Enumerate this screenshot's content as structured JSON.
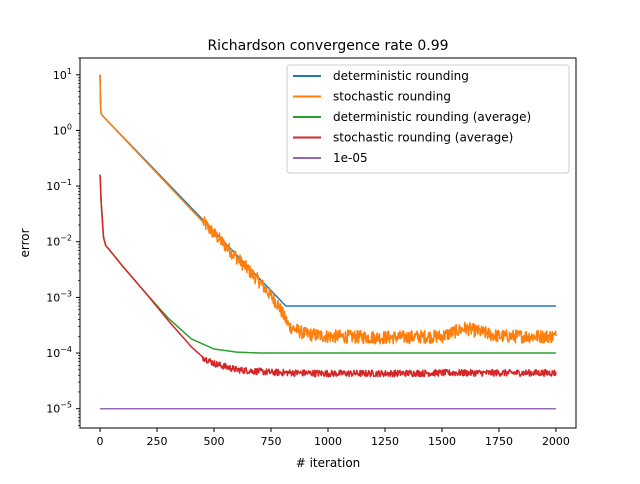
{
  "chart_data": {
    "type": "line",
    "title": "Richardson convergence rate 0.99",
    "xlabel": "# iteration",
    "ylabel": "error",
    "xlim": [
      -88,
      2088
    ],
    "ylim": [
      4.5e-06,
      20
    ],
    "yscale": "log",
    "grid": false,
    "legend_position": "top-right",
    "x_ticks": [
      0,
      250,
      500,
      750,
      1000,
      1250,
      1500,
      1750,
      2000
    ],
    "x_tick_labels": [
      "0",
      "250",
      "500",
      "750",
      "1000",
      "1250",
      "1500",
      "1750",
      "2000"
    ],
    "y_ticks": [
      1e-05,
      0.0001,
      0.001,
      0.01,
      0.1,
      1,
      10
    ],
    "y_tick_labels": [
      {
        "base": "10",
        "exp": "−5"
      },
      {
        "base": "10",
        "exp": "−4"
      },
      {
        "base": "10",
        "exp": "−3"
      },
      {
        "base": "10",
        "exp": "−2"
      },
      {
        "base": "10",
        "exp": "−1"
      },
      {
        "base": "10",
        "exp": "0"
      },
      {
        "base": "10",
        "exp": "1"
      }
    ],
    "series": [
      {
        "name": "deterministic rounding",
        "color": "#1f77b4",
        "points": [
          [
            0,
            10
          ],
          [
            1,
            5
          ],
          [
            3,
            2.4
          ],
          [
            5,
            2.0
          ],
          [
            10,
            1.85
          ],
          [
            815,
            0.0007
          ],
          [
            2000,
            0.0007
          ]
        ]
      },
      {
        "name": "stochastic rounding",
        "color": "#ff7f0e",
        "noisy": true,
        "points": [
          [
            0,
            10
          ],
          [
            1,
            5
          ],
          [
            3,
            2.4
          ],
          [
            5,
            2.0
          ],
          [
            10,
            1.85
          ],
          [
            700,
            0.0019
          ],
          [
            780,
            0.00075
          ],
          [
            830,
            0.0003
          ],
          [
            900,
            0.00022
          ],
          [
            1000,
            0.0002
          ],
          [
            1250,
            0.00019
          ],
          [
            1500,
            0.0002
          ],
          [
            1600,
            0.00028
          ],
          [
            1750,
            0.0002
          ],
          [
            2000,
            0.0002
          ]
        ]
      },
      {
        "name": "deterministic rounding (average)",
        "color": "#2ca02c",
        "points": [
          [
            0,
            0.16
          ],
          [
            5,
            0.05
          ],
          [
            15,
            0.012
          ],
          [
            25,
            0.0085
          ],
          [
            40,
            0.0072
          ],
          [
            100,
            0.0036
          ],
          [
            200,
            0.0012
          ],
          [
            300,
            0.00042
          ],
          [
            400,
            0.00018
          ],
          [
            500,
            0.000118
          ],
          [
            600,
            0.000104
          ],
          [
            700,
            0.0001
          ],
          [
            2000,
            0.0001
          ]
        ]
      },
      {
        "name": "stochastic rounding (average)",
        "color": "#d62728",
        "noisy": true,
        "points": [
          [
            0,
            0.16
          ],
          [
            5,
            0.05
          ],
          [
            15,
            0.012
          ],
          [
            25,
            0.0085
          ],
          [
            40,
            0.0072
          ],
          [
            100,
            0.0036
          ],
          [
            200,
            0.0012
          ],
          [
            300,
            0.00038
          ],
          [
            400,
            0.00013
          ],
          [
            450,
            8.5e-05
          ],
          [
            500,
            6.5e-05
          ],
          [
            600,
            5e-05
          ],
          [
            750,
            4.5e-05
          ],
          [
            1000,
            4.3e-05
          ],
          [
            1250,
            4.3e-05
          ],
          [
            1500,
            4.4e-05
          ],
          [
            2000,
            4.4e-05
          ]
        ]
      },
      {
        "name": "1e-05",
        "color": "#9467bd",
        "points": [
          [
            0,
            1e-05
          ],
          [
            2000,
            1e-05
          ]
        ]
      }
    ]
  }
}
